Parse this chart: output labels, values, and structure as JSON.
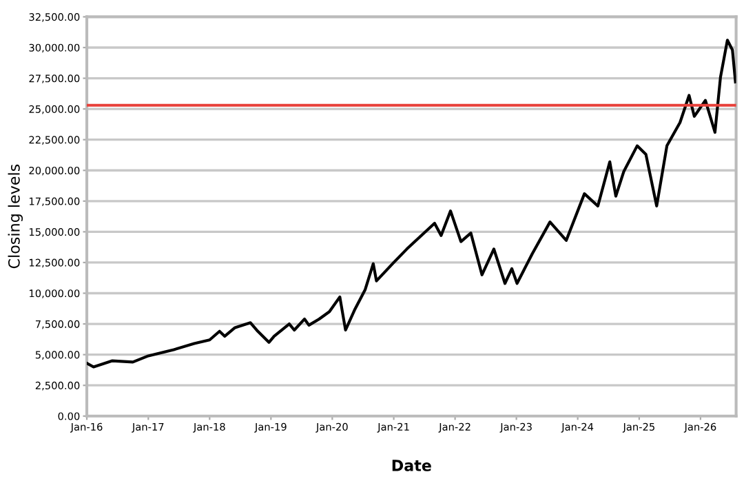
{
  "chart_data": {
    "type": "line",
    "xlabel": "Date",
    "ylabel": "Closing levels",
    "x": [
      "2016-01-01",
      "2016-02-10",
      "2016-06-01",
      "2016-10-01",
      "2017-01-01",
      "2017-06-01",
      "2017-10-01",
      "2018-01-01",
      "2018-03-01",
      "2018-04-01",
      "2018-06-01",
      "2018-09-01",
      "2018-10-15",
      "2018-12-20",
      "2019-01-20",
      "2019-04-20",
      "2019-05-20",
      "2019-07-20",
      "2019-08-15",
      "2019-10-15",
      "2019-12-15",
      "2020-02-15",
      "2020-03-20",
      "2020-05-15",
      "2020-07-15",
      "2020-09-01",
      "2020-09-20",
      "2021-01-01",
      "2021-03-20",
      "2021-09-01",
      "2021-10-10",
      "2021-12-05",
      "2022-02-05",
      "2022-04-05",
      "2022-06-10",
      "2022-08-20",
      "2022-10-25",
      "2022-12-05",
      "2023-01-05",
      "2023-04-05",
      "2023-07-20",
      "2023-10-25",
      "2024-02-10",
      "2024-04-30",
      "2024-07-10",
      "2024-08-15",
      "2024-10-01",
      "2024-12-20",
      "2025-02-10",
      "2025-04-15",
      "2025-06-15",
      "2025-09-01",
      "2025-10-25",
      "2025-11-25",
      "2026-01-30",
      "2026-03-28",
      "2026-04-30",
      "2026-06-10",
      "2026-07-10",
      "2026-07-28"
    ],
    "series": [
      {
        "color": "#000000",
        "values": [
          4300,
          4000,
          4500,
          4400,
          4900,
          5400,
          5900,
          6200,
          6900,
          6500,
          7200,
          7600,
          6900,
          6000,
          6500,
          7500,
          7000,
          7900,
          7400,
          7900,
          8500,
          9700,
          7000,
          8700,
          10300,
          12400,
          11000,
          12500,
          13600,
          15700,
          14700,
          16700,
          14200,
          14900,
          11500,
          13600,
          10800,
          12000,
          10800,
          13200,
          15800,
          14300,
          18100,
          17100,
          20700,
          17900,
          19900,
          22000,
          21300,
          17100,
          22000,
          23900,
          26100,
          24400,
          25700,
          23100,
          27600,
          30600,
          29800,
          27200
        ]
      }
    ],
    "xlim": [
      "2016-01-01",
      "2026-08-01"
    ],
    "xticks": [
      {
        "value": "2016-01-01",
        "label": "Jan-16"
      },
      {
        "value": "2017-01-01",
        "label": "Jan-17"
      },
      {
        "value": "2018-01-01",
        "label": "Jan-18"
      },
      {
        "value": "2019-01-01",
        "label": "Jan-19"
      },
      {
        "value": "2020-01-01",
        "label": "Jan-20"
      },
      {
        "value": "2021-01-01",
        "label": "Jan-21"
      },
      {
        "value": "2022-01-01",
        "label": "Jan-22"
      },
      {
        "value": "2023-01-01",
        "label": "Jan-23"
      },
      {
        "value": "2024-01-01",
        "label": "Jan-24"
      },
      {
        "value": "2025-01-01",
        "label": "Jan-25"
      },
      {
        "value": "2026-01-01",
        "label": "Jan-26"
      }
    ],
    "ylim": [
      0,
      32500
    ],
    "yticks": [
      {
        "value": 0,
        "label": "0.00"
      },
      {
        "value": 2500,
        "label": "2,500.00"
      },
      {
        "value": 5000,
        "label": "5,000.00"
      },
      {
        "value": 7500,
        "label": "7,500.00"
      },
      {
        "value": 10000,
        "label": "10,000.00"
      },
      {
        "value": 12500,
        "label": "12,500.00"
      },
      {
        "value": 15000,
        "label": "15,000.00"
      },
      {
        "value": 17500,
        "label": "17,500.00"
      },
      {
        "value": 20000,
        "label": "20,000.00"
      },
      {
        "value": 22500,
        "label": "22,500.00"
      },
      {
        "value": 25000,
        "label": "25,000.00"
      },
      {
        "value": 27500,
        "label": "27,500.00"
      },
      {
        "value": 30000,
        "label": "30,000.00"
      },
      {
        "value": 32500,
        "label": "32,500.00"
      }
    ],
    "ref_lines": [
      {
        "axis": "y",
        "value": 25300,
        "color": "#e8403a"
      }
    ],
    "grid": "y",
    "marker": "none",
    "line_style": "solid"
  }
}
